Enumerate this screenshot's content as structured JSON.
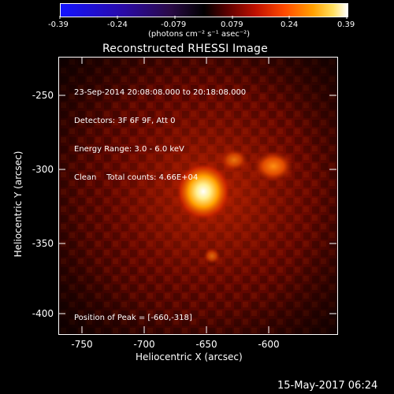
{
  "colorbar": {
    "ticks": [
      "-0.39",
      "-0.24",
      "-0.079",
      "0.079",
      "0.24",
      "0.39"
    ],
    "units_label": "(photons cm⁻² s⁻¹ asec⁻²)"
  },
  "plot": {
    "title": "Reconstructed RHESSI Image",
    "xlabel": "Heliocentric X (arcsec)",
    "ylabel": "Heliocentric Y (arcsec)",
    "xticks": [
      "-750",
      "-700",
      "-650",
      "-600"
    ],
    "yticks": [
      "-250",
      "-300",
      "-350",
      "-400"
    ],
    "info": {
      "line1": "23-Sep-2014 20:08:08.000 to 20:18:08.000",
      "line2": "Detectors: 3F 6F 9F, Att 0",
      "line3": "Energy Range: 3.0 - 6.0 keV",
      "line4": "Clean    Total counts: 4.66E+04"
    },
    "peak": "Position of Peak = [-660,-318]"
  },
  "footer": {
    "timestamp": "15-May-2017 06:24"
  }
}
